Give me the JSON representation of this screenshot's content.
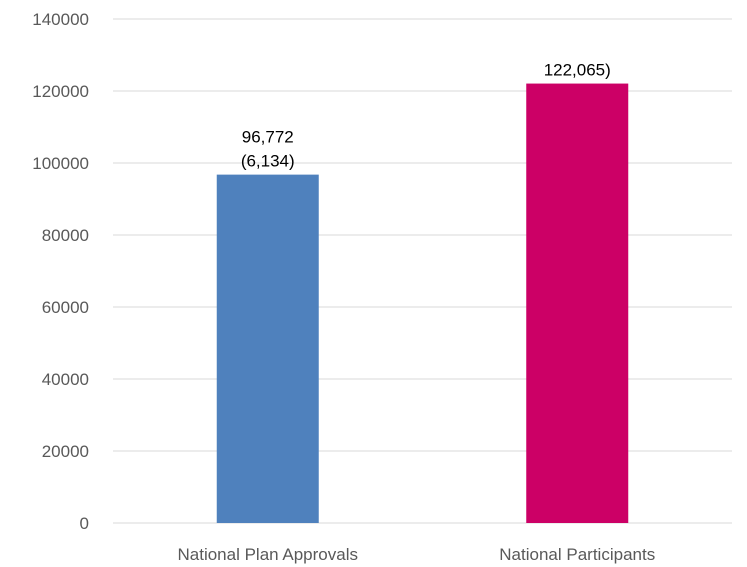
{
  "chart_data": {
    "type": "bar",
    "categories": [
      "National Plan Approvals",
      "National Participants"
    ],
    "values": [
      96772,
      122065
    ],
    "data_labels": [
      [
        "96,772",
        "(6,134)"
      ],
      [
        "122,065)"
      ]
    ],
    "colors": [
      "#4f81bd",
      "#cc0066"
    ],
    "y_ticks": [
      "0",
      "20000",
      "40000",
      "60000",
      "80000",
      "100000",
      "120000",
      "140000"
    ],
    "ylim": [
      0,
      140000
    ],
    "grid": true,
    "legend": "none"
  }
}
